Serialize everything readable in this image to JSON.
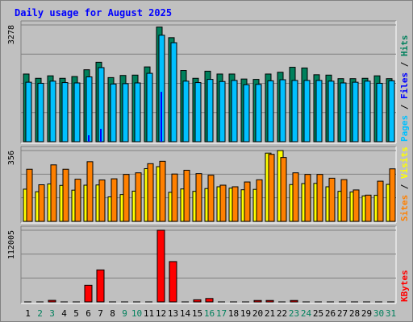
{
  "title": "Daily usage for August 2025",
  "colors": {
    "hits": "#00805c",
    "files": "#0000ff",
    "pages": "#00c0ff",
    "visits": "#ffff00",
    "sites": "#ff8000",
    "kbytes": "#ff0000",
    "weekday": "#000000",
    "weekend": "#00805c",
    "title": "#0000ff",
    "panel": "#c0c0c0"
  },
  "chart_data": {
    "type": "bar",
    "days": [
      "1",
      "2",
      "3",
      "4",
      "5",
      "6",
      "7",
      "8",
      "9",
      "10",
      "11",
      "12",
      "13",
      "14",
      "15",
      "16",
      "17",
      "18",
      "19",
      "20",
      "21",
      "22",
      "23",
      "24",
      "25",
      "26",
      "27",
      "28",
      "29",
      "30",
      "31"
    ],
    "weekend_days": [
      "2",
      "3",
      "9",
      "10",
      "16",
      "17",
      "23",
      "24",
      "30",
      "31"
    ],
    "panels": [
      {
        "id": "hits-files-pages",
        "ymax_label": "3278",
        "ymax": 3278,
        "legend": [
          {
            "label": "Pages",
            "color_key": "pages"
          },
          {
            "label": "Files",
            "color_key": "files"
          },
          {
            "label": "Hits",
            "color_key": "hits"
          }
        ],
        "series": [
          {
            "name": "Hits",
            "color_key": "hits",
            "values": [
              1900,
              1780,
              1850,
              1780,
              1830,
              2020,
              2230,
              1800,
              1860,
              1870,
              2100,
              3220,
              2920,
              2000,
              1780,
              1980,
              1900,
              1900,
              1760,
              1750,
              1900,
              1950,
              2090,
              2070,
              1880,
              1870,
              1770,
              1770,
              1780,
              1850,
              1770
            ]
          },
          {
            "name": "Pages",
            "color_key": "pages",
            "values": [
              1670,
              1640,
              1700,
              1660,
              1650,
              1820,
              2080,
              1620,
              1630,
              1650,
              1920,
              2990,
              2780,
              1700,
              1660,
              1750,
              1690,
              1720,
              1600,
              1610,
              1710,
              1740,
              1720,
              1720,
              1720,
              1700,
              1650,
              1670,
              1700,
              1640,
              1710
            ]
          },
          {
            "name": "Files",
            "color_key": "files",
            "values": [
              0,
              0,
              0,
              0,
              0,
              180,
              360,
              0,
              0,
              0,
              0,
              1400,
              0,
              0,
              0,
              0,
              0,
              0,
              0,
              0,
              0,
              0,
              0,
              0,
              0,
              0,
              0,
              0,
              0,
              0,
              0
            ]
          }
        ]
      },
      {
        "id": "sites-visits",
        "ymax_label": "356",
        "ymax": 356,
        "legend": [
          {
            "label": "Sites",
            "color_key": "sites"
          },
          {
            "label": "Visits",
            "color_key": "visits"
          }
        ],
        "series": [
          {
            "name": "Visits",
            "color_key": "visits",
            "values": [
              162,
              149,
              188,
              181,
              157,
              182,
              183,
              123,
              135,
              152,
              265,
              275,
              146,
              163,
              151,
              165,
              174,
              167,
              159,
              161,
              343,
              356,
              185,
              190,
              191,
              174,
              151,
              148,
              128,
              131,
              186
            ]
          },
          {
            "name": "Sites",
            "color_key": "sites",
            "values": [
              262,
              184,
              284,
              262,
              212,
              300,
              208,
              214,
              236,
              244,
              290,
              302,
              238,
              257,
              240,
              232,
              182,
              174,
              198,
              209,
              337,
              321,
              244,
              236,
              236,
              217,
              210,
              158,
              132,
              202,
              264
            ]
          }
        ]
      },
      {
        "id": "kbytes",
        "ymax_label": "112005",
        "ymax": 112005,
        "legend": [
          {
            "label": "KBytes",
            "color_key": "kbytes"
          }
        ],
        "series": [
          {
            "name": "KBytes",
            "color_key": "kbytes",
            "values": [
              0,
              0,
              2400,
              0,
              0,
              26000,
              50000,
              0,
              0,
              0,
              0,
              112005,
              63000,
              0,
              3300,
              5300,
              0,
              0,
              0,
              2200,
              2200,
              0,
              2200,
              0,
              0,
              0,
              0,
              0,
              0,
              0,
              0
            ]
          }
        ]
      }
    ]
  }
}
